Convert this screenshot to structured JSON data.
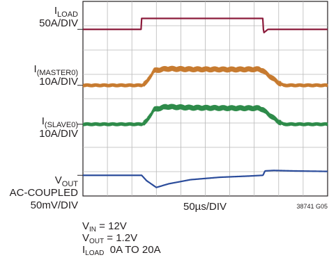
{
  "chart_data": {
    "type": "line",
    "title": "",
    "x_axis": {
      "label": "50µs/DIV",
      "divisions": 10,
      "units_per_division_us": 50,
      "range_us": [
        0,
        500
      ]
    },
    "figure_code": "38741 G05",
    "grid": true,
    "channels": [
      {
        "id": "iload",
        "name_main": "I",
        "name_sub": "LOAD",
        "scale": "50A/DIV",
        "color": "#8b1a3a",
        "x_us": [
          0,
          119,
          120,
          368,
          369,
          378,
          500
        ],
        "y_div": [
          0,
          0,
          0.45,
          0.45,
          -0.15,
          0,
          0
        ]
      },
      {
        "id": "imaster0",
        "name_main": "I",
        "name_sub": "(MASTER0)",
        "scale": "10A/DIV",
        "color": "#c77b30",
        "noise_div": 0.07,
        "x_us": [
          0,
          120,
          130,
          145,
          170,
          220,
          300,
          360,
          368,
          380,
          400,
          410,
          500
        ],
        "y_div": [
          0,
          0,
          0.12,
          0.6,
          0.68,
          0.66,
          0.65,
          0.66,
          0.6,
          0.4,
          0.1,
          0,
          0
        ]
      },
      {
        "id": "islave0",
        "name_main": "I",
        "name_sub": "(SLAVE0)",
        "scale": "10A/DIV",
        "color": "#2e8b4a",
        "noise_div": 0.07,
        "x_us": [
          0,
          120,
          130,
          145,
          170,
          220,
          300,
          360,
          368,
          380,
          400,
          410,
          500
        ],
        "y_div": [
          0,
          0,
          0.12,
          0.6,
          0.72,
          0.68,
          0.66,
          0.66,
          0.6,
          0.4,
          0.1,
          0,
          0
        ]
      },
      {
        "id": "vout",
        "name_main": "V",
        "name_sub": "OUT",
        "coupling": "AC-COUPLED",
        "scale": "50mV/DIV",
        "color": "#2b4c9b",
        "x_us": [
          0,
          120,
          130,
          150,
          175,
          220,
          280,
          340,
          368,
          372,
          390,
          430,
          500
        ],
        "y_div": [
          0,
          0,
          -0.22,
          -0.5,
          -0.35,
          -0.18,
          -0.08,
          -0.03,
          0,
          0.18,
          0.2,
          0.18,
          0.16
        ]
      }
    ]
  },
  "conditions": [
    {
      "main": "V",
      "sub": "IN",
      "value": " = 12V"
    },
    {
      "main": "V",
      "sub": "OUT",
      "value": " = 1.2V"
    },
    {
      "main": "I",
      "sub": "LOAD",
      "value": "  0A TO 20A"
    }
  ]
}
